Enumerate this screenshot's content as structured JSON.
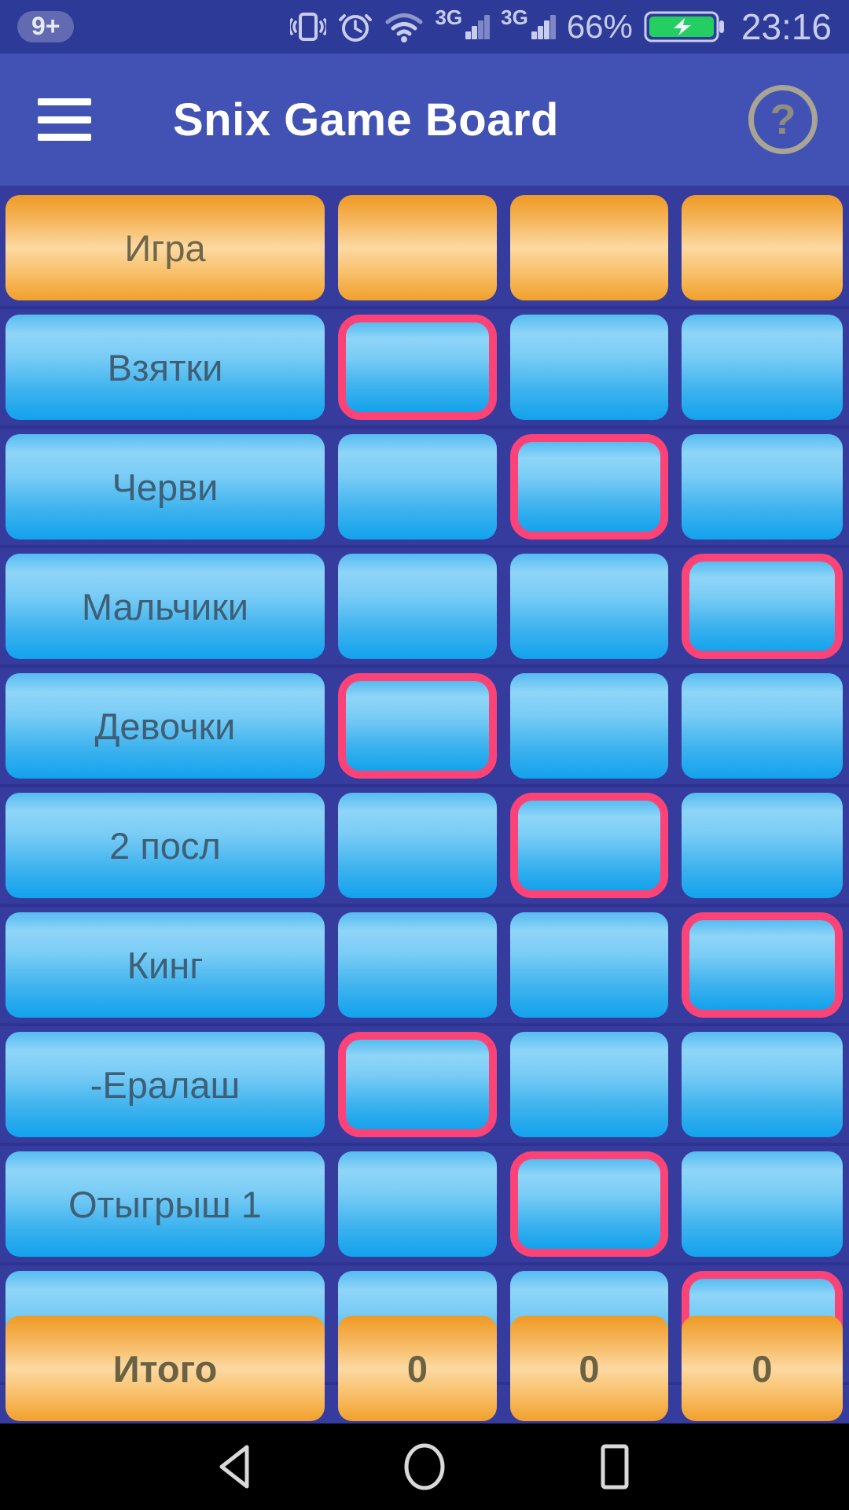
{
  "colors": {
    "accent_pink": "#FC4377",
    "cell_blue_top": "#8FD5F8",
    "cell_blue_bottom": "#12A2EC",
    "cell_orange_light": "#FCD9A2",
    "cell_orange_dark": "#EE9A25",
    "status_bar_blue": "#2E3A97",
    "app_bar_blue": "#4152B4",
    "board_background": "#363C9E",
    "battery_green": "#25CE62"
  },
  "status_bar": {
    "notification_badge": "9+",
    "network_type_1": "3G",
    "network_type_2": "3G",
    "battery_percent": "66%",
    "time": "23:16"
  },
  "app_bar": {
    "title": "Snix Game Board",
    "help_label": "?"
  },
  "board": {
    "rows": [
      {
        "label": "Игра",
        "style": "orange",
        "selected_col": null
      },
      {
        "label": "Взятки",
        "style": "blue",
        "selected_col": 0
      },
      {
        "label": "Черви",
        "style": "blue",
        "selected_col": 1
      },
      {
        "label": "Мальчики",
        "style": "blue",
        "selected_col": 2
      },
      {
        "label": "Девочки",
        "style": "blue",
        "selected_col": 0
      },
      {
        "label": "2 посл",
        "style": "blue",
        "selected_col": 1
      },
      {
        "label": "Кинг",
        "style": "blue",
        "selected_col": 2
      },
      {
        "label": "-Ералаш",
        "style": "blue",
        "selected_col": 0
      },
      {
        "label": "Отыгрыш 1",
        "style": "blue",
        "selected_col": 1
      },
      {
        "label": "",
        "style": "blue",
        "selected_col": 2
      }
    ],
    "total_row": {
      "label": "Итого",
      "values": [
        "0",
        "0",
        "0"
      ]
    }
  }
}
